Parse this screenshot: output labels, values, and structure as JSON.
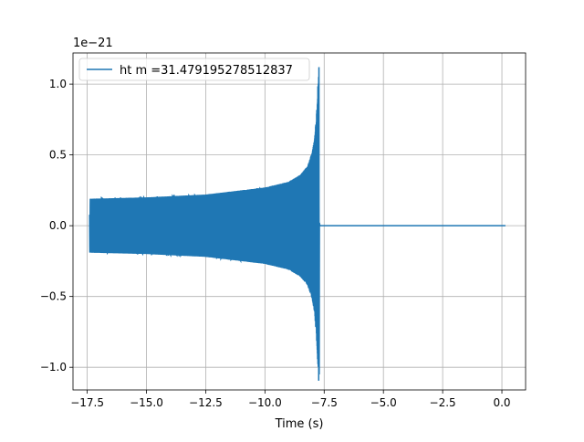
{
  "chart_data": {
    "type": "line",
    "title": "",
    "xlabel": "Time (s)",
    "ylabel": "",
    "offset_label": "1e−21",
    "xlim": [
      -18.1,
      1.0
    ],
    "ylim": [
      -1.16,
      1.22
    ],
    "x_ticks": [
      -17.5,
      -15.0,
      -12.5,
      -10.0,
      -7.5,
      -5.0,
      -2.5,
      0.0
    ],
    "x_tick_labels": [
      "−17.5",
      "−15.0",
      "−12.5",
      "−10.0",
      "−7.5",
      "−5.0",
      "−2.5",
      "0.0"
    ],
    "y_ticks": [
      -1.0,
      -0.5,
      0.0,
      0.5,
      1.0
    ],
    "y_tick_labels": [
      "−1.0",
      "−0.5",
      "0.0",
      "0.5",
      "1.0"
    ],
    "grid": true,
    "legend_position": "top-left",
    "series": [
      {
        "name": "ht m =31.479195278512837",
        "color": "#1f77b4",
        "signal": "inspiral chirp: amplitude ~0.19 at t=-17.4 rising to ~1.1 at merger t~-7.7, then ringdown to 0 and flat until t=0.15",
        "t_start": -17.4,
        "t_merger": -7.72,
        "t_end": 0.15,
        "envelope_t": [
          -17.4,
          -15.0,
          -12.5,
          -10.0,
          -9.0,
          -8.5,
          -8.2,
          -8.0,
          -7.9,
          -7.8,
          -7.75,
          -7.72
        ],
        "envelope_amp": [
          0.19,
          0.2,
          0.22,
          0.27,
          0.31,
          0.36,
          0.42,
          0.52,
          0.62,
          0.85,
          1.05,
          1.12
        ],
        "peak_min": -1.05
      }
    ]
  }
}
